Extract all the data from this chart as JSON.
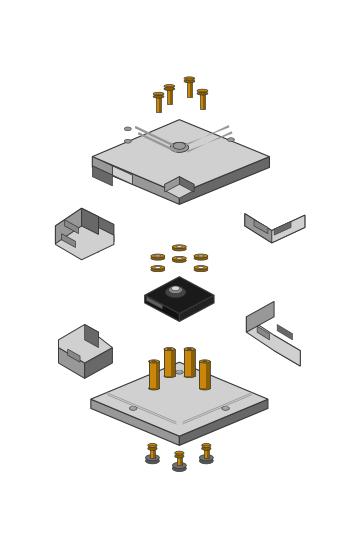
{
  "bg": "#ffffff",
  "gold": "#C8860A",
  "gold_d": "#8B5E00",
  "gold_l": "#D4920F",
  "gl": "#C0C0C0",
  "gm": "#989898",
  "gd": "#686868",
  "gll": "#D0D0D0",
  "blk": "#1A1A1A",
  "blk2": "#2A2A2A",
  "out": "#383838",
  "sensor_gray": "#888888",
  "sensor_white": "#D8D8D8"
}
